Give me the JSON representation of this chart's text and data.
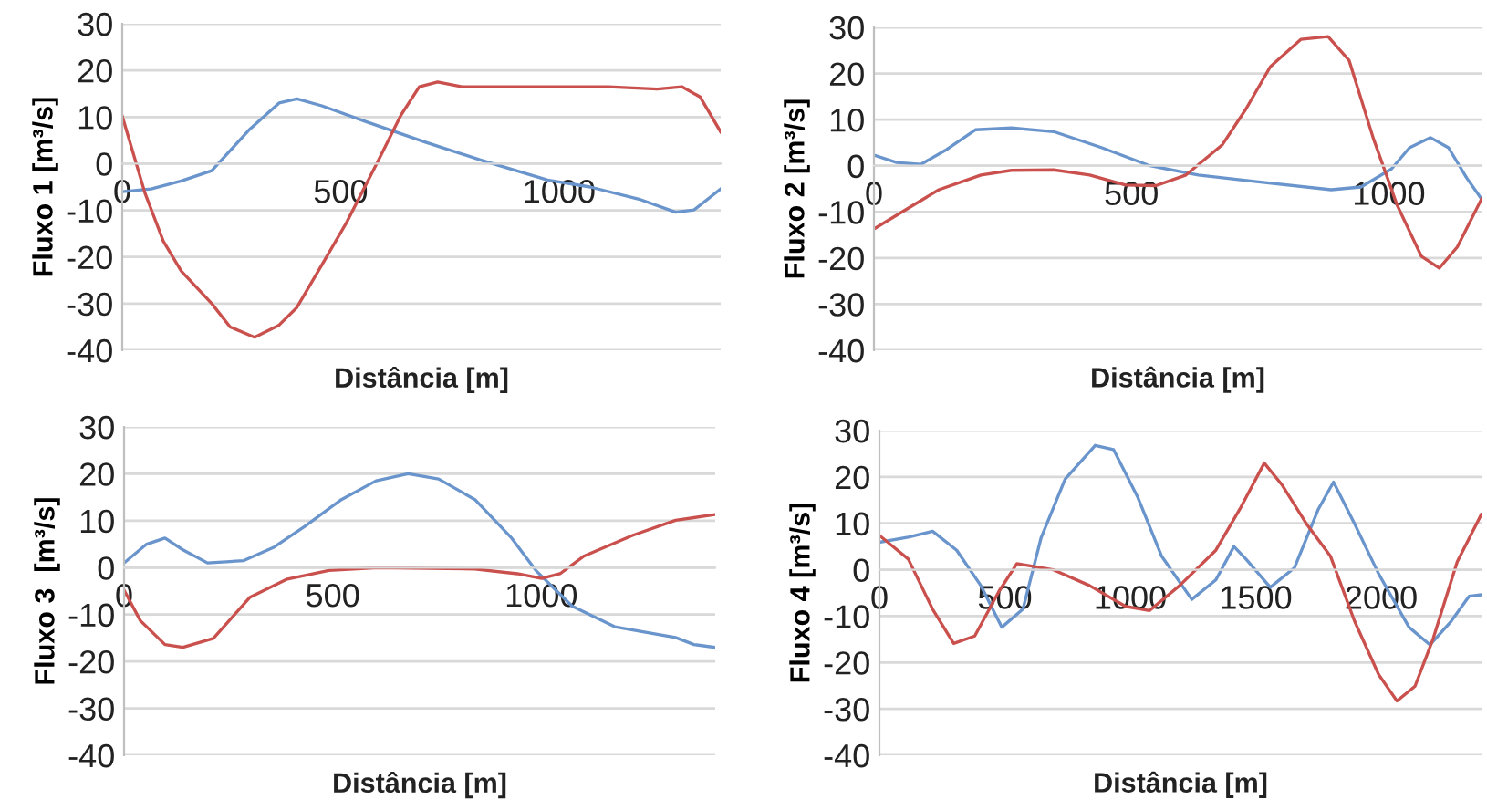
{
  "chart_data": [
    {
      "type": "line",
      "xlabel": "Distância [m]",
      "ylabel": "Fluxo 1 [m³/s]",
      "xlim": [
        0,
        1370
      ],
      "ylim": [
        -40,
        30
      ],
      "xticks": [
        0,
        500,
        1000
      ],
      "yticks": [
        -40,
        -30,
        -20,
        -10,
        0,
        10,
        20,
        30
      ],
      "grid": "y",
      "series": [
        {
          "color": "#6a95cc",
          "x": [
            0,
            66,
            135,
            205,
            290,
            359,
            400,
            457,
            555,
            694,
            820,
            974,
            1071,
            1183,
            1267,
            1309,
            1370
          ],
          "values": [
            -6,
            -5.4,
            -3.7,
            -1.5,
            7.2,
            13,
            13.9,
            12.4,
            9.1,
            4.6,
            0.8,
            -3.5,
            -5,
            -7.6,
            -10.4,
            -9.9,
            -5.4
          ]
        },
        {
          "color": "#c9504d",
          "x": [
            0,
            52,
            94,
            135,
            205,
            247,
            303,
            359,
            400,
            457,
            513,
            583,
            638,
            680,
            722,
            778,
            974,
            1113,
            1225,
            1281,
            1323,
            1370
          ],
          "values": [
            10.2,
            -6.3,
            -16.6,
            -23,
            -30,
            -35,
            -37.2,
            -34.6,
            -30.8,
            -21.7,
            -12.7,
            0.1,
            10.4,
            16.5,
            17.5,
            16.5,
            16.5,
            16.5,
            16,
            16.5,
            14.3,
            6.8
          ]
        }
      ]
    },
    {
      "type": "line",
      "xlabel": "Distância [m]",
      "ylabel": "Fluxo 2 [m³/s]",
      "xlim": [
        0,
        1180
      ],
      "ylim": [
        -40,
        30
      ],
      "xticks": [
        0,
        500,
        1000
      ],
      "yticks": [
        -40,
        -30,
        -20,
        -10,
        0,
        10,
        20,
        30
      ],
      "grid": "y",
      "series": [
        {
          "color": "#6a95cc",
          "x": [
            0,
            44,
            91,
            138,
            197,
            267,
            349,
            443,
            536,
            630,
            747,
            888,
            946,
            1005,
            1040,
            1081,
            1116,
            1151,
            1180
          ],
          "values": [
            2.3,
            0.7,
            0.3,
            3.3,
            7.8,
            8.2,
            7.4,
            3.9,
            0,
            -2,
            -3.5,
            -5.2,
            -4.6,
            -0.7,
            3.9,
            6.1,
            3.9,
            -2.6,
            -7.2
          ]
        },
        {
          "color": "#c9504d",
          "x": [
            0,
            68,
            126,
            208,
            267,
            349,
            419,
            489,
            548,
            606,
            677,
            723,
            770,
            829,
            882,
            923,
            970,
            1016,
            1063,
            1098,
            1133,
            1180
          ],
          "values": [
            -13.7,
            -9.1,
            -5.2,
            -2,
            -1,
            -0.9,
            -2,
            -4.2,
            -4.3,
            -2,
            4.6,
            12.4,
            21.5,
            27.4,
            28,
            22.8,
            5.9,
            -8.5,
            -19.6,
            -22.2,
            -17.6,
            -7.2
          ]
        }
      ]
    },
    {
      "type": "line",
      "xlabel": "Distância [m]",
      "ylabel": "Fluxo 3  [m³/s]",
      "xlim": [
        0,
        1417
      ],
      "ylim": [
        -40,
        30
      ],
      "xticks": [
        0,
        500,
        1000
      ],
      "yticks": [
        -40,
        -30,
        -20,
        -10,
        0,
        10,
        20,
        30
      ],
      "grid": "y",
      "series": [
        {
          "color": "#6a95cc",
          "x": [
            0,
            54,
            98,
            141,
            200,
            287,
            360,
            433,
            521,
            604,
            681,
            754,
            841,
            929,
            987,
            1074,
            1176,
            1278,
            1322,
            1366,
            1417
          ],
          "values": [
            1,
            5,
            6.3,
            3.8,
            1,
            1.5,
            4.4,
            8.8,
            14.5,
            18.5,
            20,
            18.9,
            14.5,
            6.3,
            -0.6,
            -8.2,
            -12.6,
            -14.2,
            -14.9,
            -16.4,
            -17
          ]
        },
        {
          "color": "#c9504d",
          "x": [
            0,
            39,
            98,
            141,
            214,
            302,
            389,
            491,
            608,
            841,
            943,
            1001,
            1045,
            1103,
            1220,
            1322,
            1417
          ],
          "values": [
            -4.8,
            -11.3,
            -16.4,
            -17,
            -15.1,
            -6.3,
            -2.5,
            -0.6,
            0,
            -0.3,
            -1.3,
            -2.3,
            -1.3,
            2.5,
            6.9,
            10.1,
            11.3
          ]
        }
      ]
    },
    {
      "type": "line",
      "xlabel": "Distância [m]",
      "ylabel": "Fluxo 4 [m³/s]",
      "xlim": [
        0,
        2400
      ],
      "ylim": [
        -40,
        30
      ],
      "xticks": [
        0,
        500,
        1000,
        1500,
        2000
      ],
      "yticks": [
        -40,
        -30,
        -20,
        -10,
        0,
        10,
        20,
        30
      ],
      "grid": "y",
      "series": [
        {
          "color": "#6a95cc",
          "x": [
            0,
            115,
            212,
            308,
            404,
            488,
            572,
            644,
            740,
            860,
            933,
            1029,
            1125,
            1245,
            1341,
            1413,
            1461,
            1558,
            1654,
            1750,
            1810,
            1894,
            1990,
            2111,
            2195,
            2279,
            2351,
            2399
          ],
          "values": [
            5.9,
            7,
            8.3,
            4.2,
            -3.4,
            -12.4,
            -8.5,
            6.8,
            19.5,
            26.8,
            25.9,
            15.7,
            2.9,
            -6.4,
            -2.2,
            5,
            2.3,
            -3.8,
            0.4,
            13.1,
            18.9,
            9.9,
            -0.9,
            -12.4,
            -16.2,
            -11.1,
            -5.7,
            -5.4
          ]
        },
        {
          "color": "#c9504d",
          "x": [
            0,
            115,
            212,
            296,
            380,
            476,
            548,
            692,
            837,
            981,
            1077,
            1197,
            1341,
            1437,
            1534,
            1606,
            1702,
            1798,
            1894,
            1990,
            2063,
            2135,
            2207,
            2303,
            2399
          ],
          "values": [
            7.4,
            2.3,
            -8.5,
            -15.9,
            -14.3,
            -4.7,
            1.3,
            0,
            -3.4,
            -7.9,
            -8.8,
            -3.4,
            4.2,
            13.1,
            23,
            18.2,
            9.9,
            2.9,
            -11.1,
            -22.6,
            -28.3,
            -25.1,
            -14.9,
            1.7,
            11.9
          ]
        }
      ]
    }
  ]
}
